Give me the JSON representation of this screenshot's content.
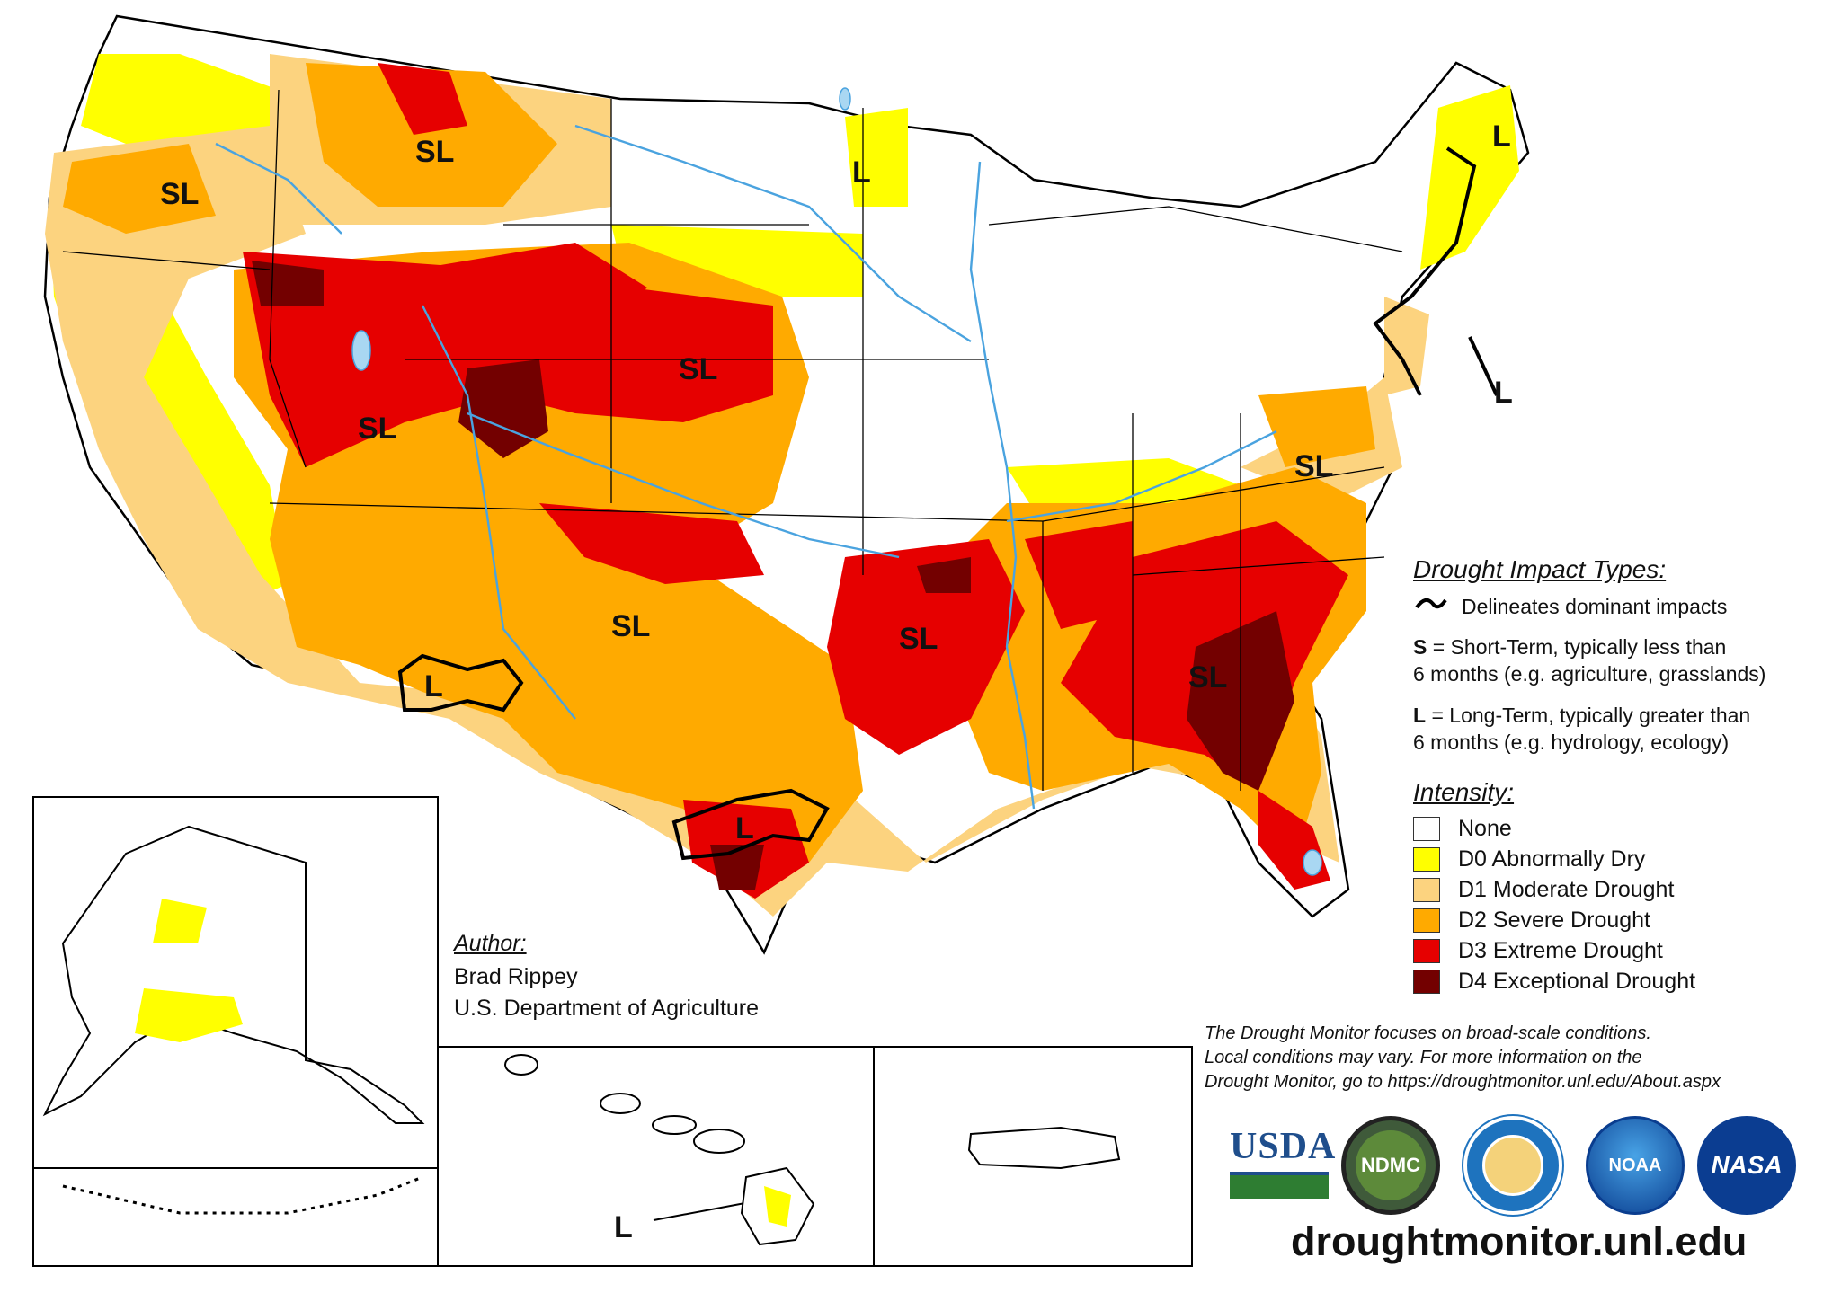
{
  "impact_labels": {
    "sl_oregon": "SL",
    "sl_montana": "SL",
    "sl_nevada_utah": "SL",
    "sl_nebraska": "SL",
    "sl_oklahoma": "SL",
    "sl_arkansas": "SL",
    "sl_georgia": "SL",
    "sl_virginia": "SL",
    "l_minnesota": "L",
    "l_maine": "L",
    "l_newjersey": "L",
    "l_newmexico": "L",
    "l_texas": "L",
    "l_hawaii": "L"
  },
  "legend": {
    "impact_title": "Drought Impact Types:",
    "delineates": "Delineates dominant impacts",
    "short_key": "S",
    "short_text_1": " = Short-Term, typically less than",
    "short_text_2": "6 months (e.g. agriculture, grasslands)",
    "long_key": "L",
    "long_text_1": " = Long-Term, typically greater than",
    "long_text_2": "6 months (e.g. hydrology, ecology)",
    "intensity_title": "Intensity:",
    "categories": [
      {
        "label": "None",
        "color": "#ffffff"
      },
      {
        "label": "D0 Abnormally Dry",
        "color": "#ffff00"
      },
      {
        "label": "D1 Moderate Drought",
        "color": "#fcd37f"
      },
      {
        "label": "D2 Severe Drought",
        "color": "#ffaa00"
      },
      {
        "label": "D3 Extreme Drought",
        "color": "#e60000"
      },
      {
        "label": "D4 Exceptional Drought",
        "color": "#730000"
      }
    ]
  },
  "author": {
    "title": "Author:",
    "name": "Brad Rippey",
    "org": "U.S. Department of Agriculture"
  },
  "note": {
    "line1": "The Drought Monitor focuses on broad-scale conditions.",
    "line2": "Local conditions may vary. For more information on the",
    "line3": "Drought Monitor, go to https://droughtmonitor.unl.edu/About.aspx"
  },
  "logos": {
    "usda": "USDA",
    "ndmc": "NDMC",
    "noaa": "NOAA",
    "nasa": "NASA"
  },
  "url": "droughtmonitor.unl.edu"
}
